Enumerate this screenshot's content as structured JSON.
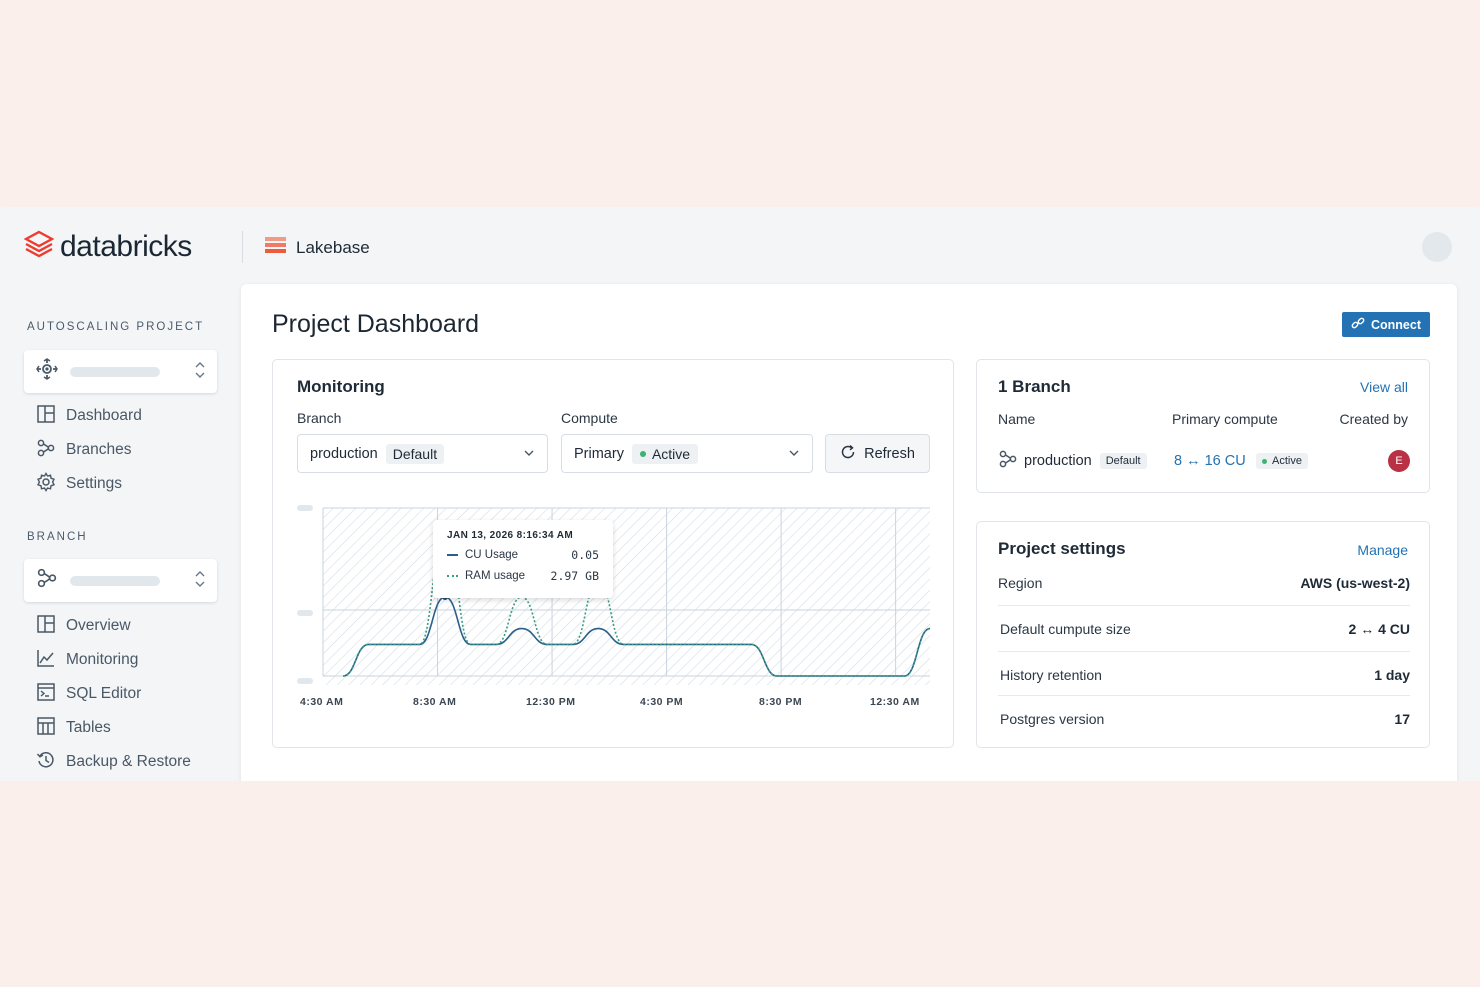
{
  "header": {
    "brand": "databricks",
    "product": "Lakebase"
  },
  "sidebar": {
    "project_section_label": "AUTOSCALING PROJECT",
    "project_items": [
      {
        "label": "Dashboard",
        "icon": "dashboard-icon"
      },
      {
        "label": "Branches",
        "icon": "branch-icon"
      },
      {
        "label": "Settings",
        "icon": "gear-icon"
      }
    ],
    "branch_section_label": "BRANCH",
    "branch_items": [
      {
        "label": "Overview",
        "icon": "overview-icon"
      },
      {
        "label": "Monitoring",
        "icon": "line-chart-icon"
      },
      {
        "label": "SQL Editor",
        "icon": "terminal-icon"
      },
      {
        "label": "Tables",
        "icon": "table-icon"
      },
      {
        "label": "Backup & Restore",
        "icon": "history-icon"
      }
    ]
  },
  "main": {
    "title": "Project Dashboard",
    "connect_label": "Connect"
  },
  "monitoring": {
    "title": "Monitoring",
    "branch_label": "Branch",
    "branch_value": "production",
    "branch_tag": "Default",
    "compute_label": "Compute",
    "compute_value": "Primary",
    "compute_status": "Active",
    "refresh_label": "Refresh",
    "tooltip": {
      "date": "JAN 13, 2026 8:16:34 AM",
      "cu_label": "CU Usage",
      "cu_value": "0.05",
      "ram_label": "RAM usage",
      "ram_value": "2.97 GB"
    }
  },
  "chart_data": {
    "type": "line",
    "x_ticks": [
      "4:30 AM",
      "8:30 AM",
      "12:30 PM",
      "4:30 PM",
      "8:30 PM",
      "12:30 AM"
    ],
    "series": [
      {
        "name": "CU Usage",
        "color": "#2b5f8a",
        "style": "solid",
        "values": [
          0,
          0.02,
          0.02,
          0.02,
          0.05,
          0.02,
          0.02,
          0.03,
          0.02,
          0.02,
          0.03,
          0.02,
          0.02,
          0.02,
          0.02,
          0.02,
          0.02,
          0,
          0,
          0,
          0,
          0,
          0,
          0.03
        ]
      },
      {
        "name": "RAM usage",
        "color": "#3a9e85",
        "style": "dotted",
        "values": [
          0,
          0.02,
          0.02,
          0.02,
          0.09,
          0.02,
          0.02,
          0.05,
          0.02,
          0.02,
          0.06,
          0.02,
          0.02,
          0.02,
          0.02,
          0.02,
          0.02,
          0,
          0,
          0,
          0,
          0,
          0,
          0.03
        ]
      }
    ],
    "highlight_index": 4,
    "grid": true
  },
  "branches": {
    "title": "1 Branch",
    "view_all": "View all",
    "col_name": "Name",
    "col_compute": "Primary compute",
    "col_created": "Created by",
    "row": {
      "name": "production",
      "tag": "Default",
      "compute": "8 ↔ 16 CU",
      "status": "Active",
      "creator_initial": "E"
    }
  },
  "settings": {
    "title": "Project settings",
    "manage": "Manage",
    "rows": [
      {
        "label": "Region",
        "value": "AWS (us-west-2)"
      },
      {
        "label": "Default cumpute size",
        "value": "2 ↔ 4 CU"
      },
      {
        "label": "History retention",
        "value": "1 day"
      },
      {
        "label": "Postgres version",
        "value": "17"
      }
    ]
  }
}
